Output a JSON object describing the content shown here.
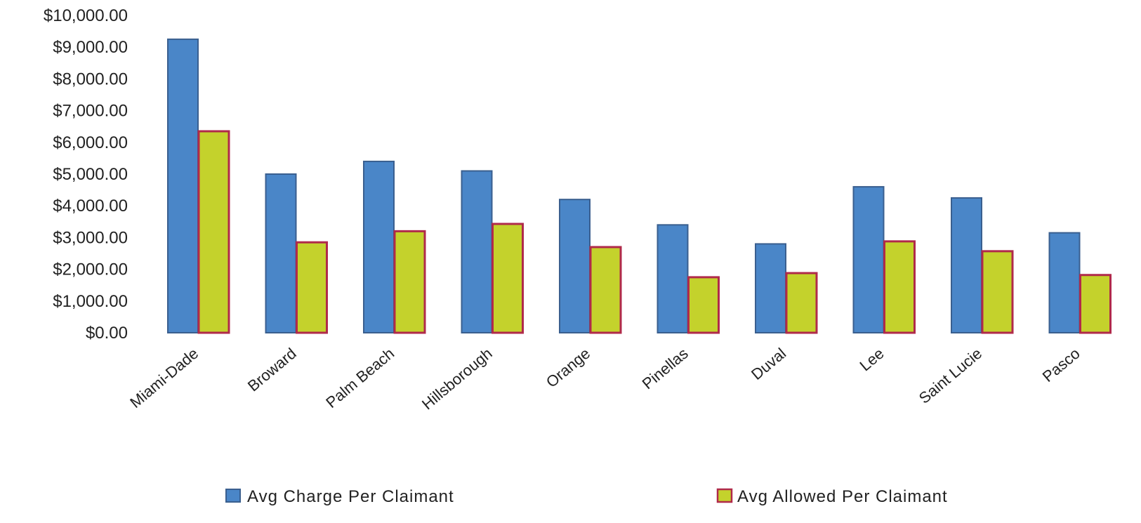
{
  "chart_data": {
    "type": "bar",
    "categories": [
      "Miami-Dade",
      "Broward",
      "Palm Beach",
      "Hillsborough",
      "Orange",
      "Pinellas",
      "Duval",
      "Lee",
      "Saint Lucie",
      "Pasco"
    ],
    "series": [
      {
        "name": "Avg Charge Per Claimant",
        "color": "#4a86c8",
        "border": "#3a5f8f",
        "values": [
          9250,
          5000,
          5400,
          5100,
          4200,
          3400,
          2800,
          4600,
          4250,
          3150
        ]
      },
      {
        "name": "Avg Allowed Per Claimant",
        "color": "#c4d22c",
        "border": "#b02a4a",
        "values": [
          6350,
          2850,
          3200,
          3430,
          2700,
          1750,
          1880,
          2880,
          2570,
          1820
        ]
      }
    ],
    "yticks": [
      "$0.00",
      "$1,000.00",
      "$2,000.00",
      "$3,000.00",
      "$4,000.00",
      "$5,000.00",
      "$6,000.00",
      "$7,000.00",
      "$8,000.00",
      "$9,000.00",
      "$10,000.00"
    ],
    "ylim": [
      0,
      10000
    ],
    "grid": false,
    "legend_position": "bottom"
  }
}
